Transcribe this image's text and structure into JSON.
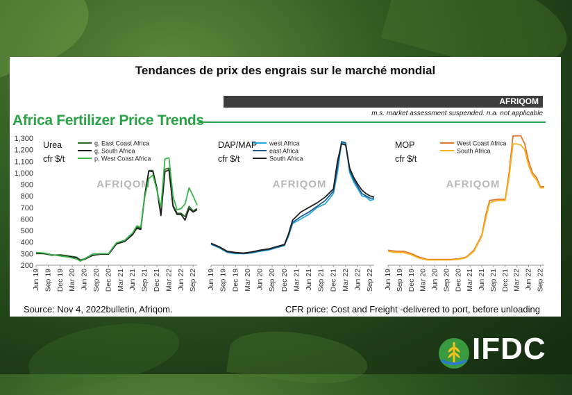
{
  "card": {
    "title": "Tendances de prix des engrais sur le marché mondial",
    "brand": "AFRIQOM",
    "note": "m.s. market assessment suspended. n.a. not applicable",
    "section_title": "Africa Fertilizer Price Trends",
    "source": "Source: Nov 4, 2022bulletin, Afriqom.",
    "cfr": "CFR price: Cost and Freight -delivered to port, before unloading"
  },
  "logo": {
    "text": "IFDC",
    "icon": "wheat-icon"
  },
  "watermark": "AFRIQOM",
  "chart_data": [
    {
      "type": "line",
      "title": "Urea",
      "ylabel": "cfr $/t",
      "ylim": [
        200,
        1300
      ],
      "yticks": [
        "200",
        "300",
        "400",
        "500",
        "600",
        "700",
        "800",
        "900",
        "1,000",
        "1,100",
        "1,200",
        "1,300"
      ],
      "xlim": [
        0,
        40
      ],
      "xticks": [
        {
          "x": 0,
          "label": "Jun 19"
        },
        {
          "x": 3,
          "label": "Sep 19"
        },
        {
          "x": 6,
          "label": "Dec 19"
        },
        {
          "x": 9,
          "label": "Mar 20"
        },
        {
          "x": 12,
          "label": "Jun 20"
        },
        {
          "x": 15,
          "label": "Sep 20"
        },
        {
          "x": 18,
          "label": "Dec 20"
        },
        {
          "x": 21,
          "label": "Mar 21"
        },
        {
          "x": 24,
          "label": "Jun 21"
        },
        {
          "x": 27,
          "label": "Sep 21"
        },
        {
          "x": 30,
          "label": "Dec 21"
        },
        {
          "x": 33,
          "label": "Mar 22"
        },
        {
          "x": 36,
          "label": "Jun 22"
        },
        {
          "x": 39,
          "label": "Sep 22"
        }
      ],
      "series": [
        {
          "name": "g, East Coast Africa",
          "color": "#2e6b2a",
          "x": [
            0,
            2,
            4,
            6,
            8,
            10,
            11,
            12,
            14,
            16,
            18,
            19,
            20,
            22,
            24,
            25,
            26,
            27,
            28,
            29,
            30,
            31,
            32,
            33,
            34,
            35,
            36,
            37,
            38,
            39,
            40
          ],
          "y": [
            300,
            300,
            285,
            290,
            280,
            270,
            245,
            255,
            290,
            300,
            300,
            345,
            390,
            410,
            470,
            530,
            520,
            810,
            1020,
            1020,
            870,
            640,
            1030,
            1040,
            720,
            650,
            650,
            620,
            710,
            670,
            690
          ]
        },
        {
          "name": "g, South Africa",
          "color": "#1f1f1f",
          "x": [
            0,
            2,
            4,
            6,
            8,
            10,
            11,
            12,
            14,
            16,
            18,
            19,
            20,
            22,
            24,
            25,
            26,
            27,
            28,
            29,
            30,
            31,
            32,
            33,
            34,
            35,
            36,
            37,
            38,
            39,
            40
          ],
          "y": [
            305,
            300,
            290,
            285,
            275,
            265,
            240,
            250,
            285,
            295,
            295,
            340,
            385,
            405,
            465,
            520,
            510,
            800,
            1015,
            1010,
            860,
            630,
            1010,
            1025,
            710,
            640,
            640,
            590,
            690,
            660,
            680
          ]
        },
        {
          "name": "p, West Coast Africa",
          "color": "#39b54a",
          "x": [
            0,
            2,
            4,
            6,
            8,
            10,
            11,
            12,
            14,
            16,
            18,
            19,
            20,
            22,
            24,
            25,
            26,
            27,
            28,
            29,
            30,
            31,
            32,
            33,
            34,
            35,
            36,
            37,
            38,
            39,
            40
          ],
          "y": [
            310,
            305,
            290,
            280,
            270,
            255,
            235,
            255,
            295,
            300,
            300,
            350,
            395,
            415,
            480,
            540,
            530,
            790,
            950,
            980,
            850,
            700,
            1120,
            1130,
            800,
            680,
            690,
            730,
            870,
            800,
            720
          ]
        }
      ]
    },
    {
      "type": "line",
      "title": "DAP/MAP",
      "ylabel": "cfr $/t",
      "ylim": [
        200,
        1300
      ],
      "xlim": [
        0,
        40
      ],
      "xticks": [
        {
          "x": 0,
          "label": "Jun 19"
        },
        {
          "x": 3,
          "label": "Sep 19"
        },
        {
          "x": 6,
          "label": "Dec 19"
        },
        {
          "x": 9,
          "label": "Mar 20"
        },
        {
          "x": 12,
          "label": "Jun 20"
        },
        {
          "x": 15,
          "label": "Sep 20"
        },
        {
          "x": 18,
          "label": "Dec 20"
        },
        {
          "x": 21,
          "label": "Mar 21"
        },
        {
          "x": 24,
          "label": "Jun 21"
        },
        {
          "x": 27,
          "label": "Sep 21"
        },
        {
          "x": 30,
          "label": "Dec 21"
        },
        {
          "x": 33,
          "label": "Mar 22"
        },
        {
          "x": 36,
          "label": "Jun 22"
        },
        {
          "x": 39,
          "label": "Sep 22"
        }
      ],
      "series": [
        {
          "name": "west Africa",
          "color": "#29a8e0",
          "x": [
            0,
            2,
            4,
            6,
            8,
            10,
            12,
            14,
            16,
            18,
            19,
            20,
            22,
            24,
            26,
            28,
            30,
            31,
            32,
            33,
            34,
            35,
            36,
            37,
            38,
            39,
            40
          ],
          "y": [
            380,
            350,
            310,
            300,
            300,
            305,
            320,
            330,
            350,
            370,
            450,
            560,
            600,
            640,
            700,
            730,
            820,
            1000,
            1260,
            1250,
            1000,
            920,
            860,
            800,
            790,
            760,
            770
          ]
        },
        {
          "name": "east Africa",
          "color": "#1f5a8a",
          "x": [
            0,
            2,
            4,
            6,
            8,
            10,
            12,
            14,
            16,
            18,
            19,
            20,
            22,
            24,
            26,
            28,
            30,
            31,
            32,
            33,
            34,
            35,
            36,
            37,
            38,
            39,
            40
          ],
          "y": [
            385,
            355,
            315,
            305,
            300,
            310,
            325,
            335,
            355,
            375,
            460,
            570,
            620,
            660,
            710,
            760,
            840,
            1050,
            1270,
            1260,
            1020,
            940,
            880,
            820,
            800,
            780,
            780
          ]
        },
        {
          "name": "South Africa",
          "color": "#1e1e1e",
          "x": [
            0,
            2,
            4,
            6,
            8,
            10,
            12,
            14,
            16,
            18,
            19,
            20,
            22,
            24,
            26,
            28,
            30,
            31,
            32,
            33,
            34,
            35,
            36,
            37,
            38,
            39,
            40
          ],
          "y": [
            390,
            360,
            320,
            310,
            305,
            315,
            330,
            340,
            360,
            380,
            470,
            590,
            660,
            700,
            740,
            790,
            860,
            1100,
            1250,
            1240,
            1040,
            960,
            900,
            850,
            820,
            800,
            790
          ]
        }
      ]
    },
    {
      "type": "line",
      "title": "MOP",
      "ylabel": "cfr $/t",
      "ylim": [
        200,
        1300
      ],
      "xlim": [
        0,
        40
      ],
      "xticks": [
        {
          "x": 0,
          "label": "Jun 19"
        },
        {
          "x": 3,
          "label": "Sep 19"
        },
        {
          "x": 6,
          "label": "Dec 19"
        },
        {
          "x": 9,
          "label": "Mar 20"
        },
        {
          "x": 12,
          "label": "Jun 20"
        },
        {
          "x": 15,
          "label": "Sep 20"
        },
        {
          "x": 18,
          "label": "Dec 20"
        },
        {
          "x": 21,
          "label": "Mar 21"
        },
        {
          "x": 24,
          "label": "Jun 21"
        },
        {
          "x": 27,
          "label": "Sep 21"
        },
        {
          "x": 30,
          "label": "Dec 21"
        },
        {
          "x": 33,
          "label": "Mar 22"
        },
        {
          "x": 36,
          "label": "Jun 22"
        },
        {
          "x": 39,
          "label": "Sep 22"
        }
      ],
      "series": [
        {
          "name": "West Coast Africa",
          "color": "#e8772e",
          "x": [
            0,
            2,
            4,
            6,
            8,
            10,
            12,
            14,
            16,
            18,
            20,
            22,
            24,
            25,
            26,
            28,
            30,
            31,
            32,
            33,
            34,
            35,
            36,
            37,
            38,
            39,
            40
          ],
          "y": [
            330,
            320,
            320,
            300,
            270,
            250,
            250,
            250,
            250,
            255,
            270,
            330,
            460,
            630,
            760,
            770,
            770,
            1000,
            1320,
            1320,
            1320,
            1250,
            1100,
            1000,
            960,
            880,
            880
          ]
        },
        {
          "name": "South Africa",
          "color": "#f6b21a",
          "x": [
            0,
            2,
            4,
            6,
            8,
            10,
            12,
            14,
            16,
            18,
            20,
            22,
            24,
            25,
            26,
            28,
            30,
            31,
            32,
            33,
            34,
            35,
            36,
            37,
            38,
            39,
            40
          ],
          "y": [
            320,
            310,
            310,
            290,
            260,
            245,
            245,
            245,
            245,
            250,
            265,
            320,
            450,
            600,
            740,
            760,
            760,
            960,
            1250,
            1250,
            1240,
            1200,
            1060,
            980,
            940,
            870,
            870
          ]
        }
      ]
    }
  ]
}
